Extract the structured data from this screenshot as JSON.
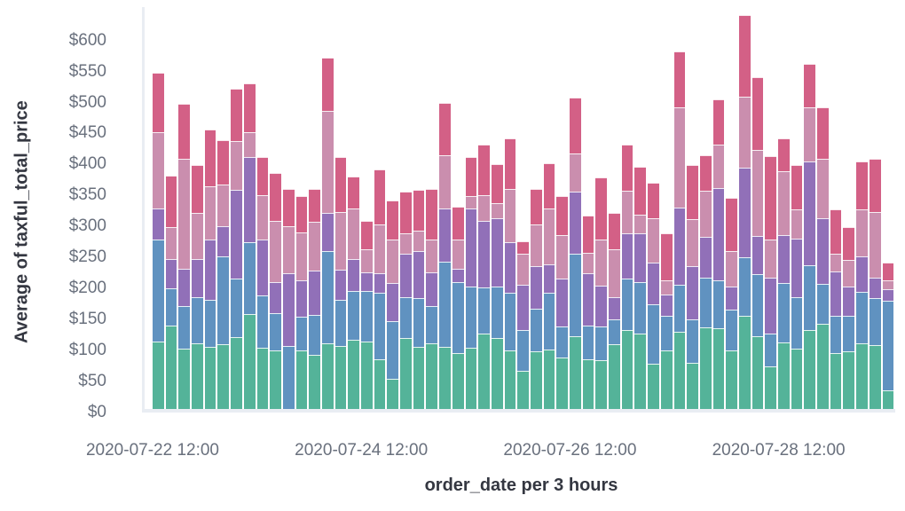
{
  "chart_data": {
    "type": "bar",
    "stacked": true,
    "title": "",
    "ylabel": "Average of taxful_total_price",
    "xlabel": "order_date per 3 hours",
    "ylim": [
      0,
      650
    ],
    "grid": false,
    "legend": "none",
    "y_tick_labels": [
      "$0",
      "$50",
      "$100",
      "$150",
      "$200",
      "$250",
      "$300",
      "$350",
      "$400",
      "$450",
      "$500",
      "$550",
      "$600"
    ],
    "y_tick_values": [
      0,
      50,
      100,
      150,
      200,
      250,
      300,
      350,
      400,
      450,
      500,
      550,
      600
    ],
    "x_start": "2020-07-22 12:00",
    "x_interval_hours": 3,
    "bar_count": 57,
    "x_tick_labels": [
      "2020-07-22 12:00",
      "2020-07-24 12:00",
      "2020-07-26 12:00",
      "2020-07-28 12:00"
    ],
    "x_tick_bar_indices": [
      0,
      16,
      32,
      48
    ],
    "series": [
      {
        "name": "series-1",
        "color": "#54B399",
        "values": [
          109,
          134,
          98,
          106,
          100,
          104,
          116,
          153,
          99,
          95,
          0,
          94,
          87,
          106,
          102,
          111,
          109,
          80,
          49,
          114,
          100,
          106,
          100,
          90,
          99,
          122,
          114,
          94,
          61,
          93,
          96,
          83,
          117,
          80,
          78,
          104,
          128,
          121,
          73,
          94,
          125,
          75,
          131,
          130,
          95,
          150,
          117,
          69,
          107,
          98,
          128,
          137,
          90,
          93,
          106,
          103,
          30
        ]
      },
      {
        "name": "series-2",
        "color": "#6092C0",
        "values": [
          164,
          61,
          68,
          74,
          76,
          142,
          95,
          116,
          84,
          59,
          102,
          55,
          65,
          149,
          74,
          79,
          82,
          108,
          93,
          66,
          79,
          60,
          138,
          114,
          98,
          74,
          84,
          94,
          66,
          68,
          92,
          50,
          133,
          55,
          55,
          41,
          83,
          83,
          96,
          56,
          76,
          70,
          81,
          78,
          65,
          95,
          100,
          53,
          96,
          82,
          104,
          65,
          60,
          57,
          83,
          76,
          144
        ]
      },
      {
        "name": "series-3",
        "color": "#9170B8",
        "values": [
          50,
          47,
          60,
          62,
          97,
          49,
          143,
          138,
          90,
          50,
          117,
          58,
          71,
          61,
          48,
          52,
          30,
          31,
          61,
          70,
          75,
          55,
          86,
          22,
          127,
          108,
          110,
          81,
          74,
          70,
          45,
          78,
          101,
          84,
          66,
          35,
          72,
          80,
          67,
          35,
          124,
          85,
          65,
          148,
          38,
          144,
          62,
          90,
          78,
          94,
          167,
          106,
          72,
          48,
          57,
          33,
          19
        ]
      },
      {
        "name": "series-4",
        "color": "#CA8EAE",
        "values": [
          123,
          52,
          177,
          74,
          86,
          67,
          78,
          39,
          72,
          99,
          76,
          78,
          79,
          165,
          94,
          82,
          37,
          78,
          70,
          33,
          33,
          52,
          85,
          47,
          19,
          41,
          24,
          86,
          50,
          67,
          91,
          70,
          61,
          33,
          74,
          78,
          69,
          29,
          72,
          23,
          162,
          76,
          75,
          71,
          57,
          114,
          139,
          62,
          103,
          48,
          87,
          95,
          29,
          43,
          76,
          105,
          15
        ]
      },
      {
        "name": "series-5",
        "color": "#D36086",
        "values": [
          96,
          83,
          89,
          78,
          92,
          71,
          85,
          79,
          62,
          78,
          60,
          58,
          53,
          85,
          89,
          51,
          45,
          90,
          63,
          67,
          67,
          82,
          84,
          53,
          63,
          81,
          63,
          82,
          19,
          57,
          72,
          62,
          90,
          60,
          101,
          58,
          74,
          77,
          57,
          75,
          89,
          87,
          57,
          72,
          86,
          132,
          117,
          134,
          53,
          72,
          70,
          83,
          71,
          53,
          77,
          86,
          28
        ]
      }
    ]
  },
  "colors": {
    "background": "#ffffff",
    "axis_text": "#69707d",
    "axis_title": "#343741",
    "axis_line": "#e9edf3"
  }
}
